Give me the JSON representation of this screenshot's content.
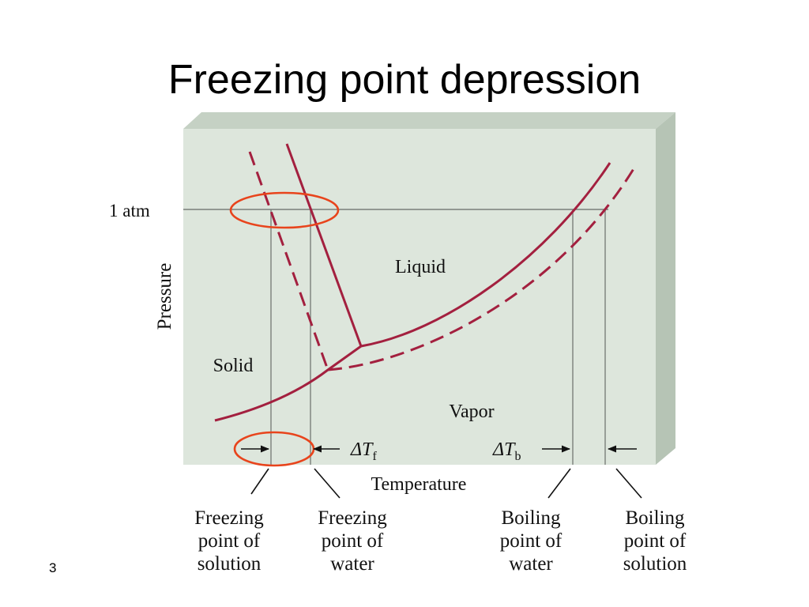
{
  "title": "Freezing point depression",
  "slide_number": "3",
  "diagram": {
    "one_atm": "1 atm",
    "y_axis": "Pressure",
    "x_axis": "Temperature",
    "regions": [
      "Liquid",
      "Solid",
      "Vapor"
    ],
    "delta_tf": {
      "main": "ΔT",
      "sub": "f"
    },
    "delta_tb": {
      "main": "ΔT",
      "sub": "b"
    },
    "callouts": [
      [
        "Freezing",
        "point of",
        "solution"
      ],
      [
        "Freezing",
        "point of",
        "water"
      ],
      [
        "Boiling",
        "point of",
        "water"
      ],
      [
        "Boiling",
        "point of",
        "solution"
      ]
    ]
  }
}
